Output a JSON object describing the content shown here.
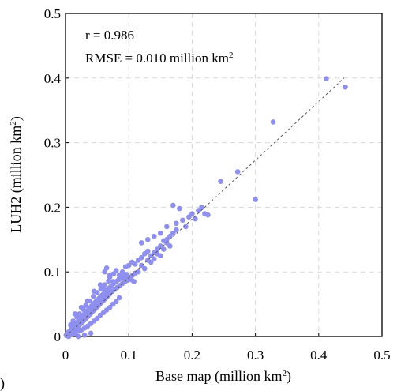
{
  "chart_data": {
    "type": "scatter",
    "xlabel": "Base map (million km",
    "xlabel_sup": "2",
    "xlabel_close": ")",
    "ylabel": "LUH2 (million km",
    "ylabel_sup": "2",
    "ylabel_close": ")",
    "xlim": [
      0,
      0.5
    ],
    "ylim": [
      0,
      0.5
    ],
    "x_ticks": [
      0,
      0.1,
      0.2,
      0.3,
      0.4,
      0.5
    ],
    "y_ticks": [
      0,
      0.1,
      0.2,
      0.3,
      0.4,
      0.5
    ],
    "x_tick_labels": [
      "0",
      "0.1",
      "0.2",
      "0.3",
      "0.4",
      "0.5"
    ],
    "y_tick_labels": [
      "0",
      "0.1",
      "0.2",
      "0.3",
      "0.4",
      "0.5"
    ],
    "grid": true,
    "point_color": "#8f8ff0",
    "reference_line": {
      "style": "dashed",
      "color": "#555555",
      "from": [
        0,
        0
      ],
      "to": [
        0.44,
        0.4
      ]
    },
    "annotations": {
      "r": "r = 0.986",
      "rmse": "RMSE = 0.010 million km",
      "rmse_sup": "2"
    },
    "panel_letter": ")",
    "points": [
      [
        0.001,
        0.002
      ],
      [
        0.002,
        0.001
      ],
      [
        0.003,
        0.005
      ],
      [
        0.004,
        0.003
      ],
      [
        0.005,
        0.007
      ],
      [
        0.006,
        0.004
      ],
      [
        0.007,
        0.009
      ],
      [
        0.008,
        0.006
      ],
      [
        0.009,
        0.011
      ],
      [
        0.01,
        0.008
      ],
      [
        0.011,
        0.013
      ],
      [
        0.012,
        0.01
      ],
      [
        0.013,
        0.015
      ],
      [
        0.014,
        0.012
      ],
      [
        0.015,
        0.018
      ],
      [
        0.016,
        0.011
      ],
      [
        0.017,
        0.02
      ],
      [
        0.018,
        0.014
      ],
      [
        0.019,
        0.022
      ],
      [
        0.02,
        0.016
      ],
      [
        0.021,
        0.025
      ],
      [
        0.022,
        0.018
      ],
      [
        0.023,
        0.027
      ],
      [
        0.024,
        0.02
      ],
      [
        0.025,
        0.03
      ],
      [
        0.026,
        0.022
      ],
      [
        0.027,
        0.032
      ],
      [
        0.028,
        0.024
      ],
      [
        0.029,
        0.034
      ],
      [
        0.03,
        0.026
      ],
      [
        0.031,
        0.036
      ],
      [
        0.032,
        0.028
      ],
      [
        0.033,
        0.038
      ],
      [
        0.034,
        0.03
      ],
      [
        0.035,
        0.04
      ],
      [
        0.036,
        0.032
      ],
      [
        0.037,
        0.042
      ],
      [
        0.038,
        0.034
      ],
      [
        0.039,
        0.045
      ],
      [
        0.04,
        0.036
      ],
      [
        0.041,
        0.047
      ],
      [
        0.042,
        0.038
      ],
      [
        0.043,
        0.049
      ],
      [
        0.044,
        0.04
      ],
      [
        0.045,
        0.051
      ],
      [
        0.046,
        0.042
      ],
      [
        0.047,
        0.053
      ],
      [
        0.048,
        0.044
      ],
      [
        0.049,
        0.055
      ],
      [
        0.05,
        0.046
      ],
      [
        0.051,
        0.057
      ],
      [
        0.052,
        0.048
      ],
      [
        0.053,
        0.059
      ],
      [
        0.054,
        0.05
      ],
      [
        0.055,
        0.061
      ],
      [
        0.056,
        0.052
      ],
      [
        0.057,
        0.063
      ],
      [
        0.058,
        0.054
      ],
      [
        0.059,
        0.065
      ],
      [
        0.06,
        0.056
      ],
      [
        0.061,
        0.067
      ],
      [
        0.062,
        0.058
      ],
      [
        0.063,
        0.069
      ],
      [
        0.064,
        0.06
      ],
      [
        0.065,
        0.071
      ],
      [
        0.066,
        0.062
      ],
      [
        0.067,
        0.073
      ],
      [
        0.068,
        0.064
      ],
      [
        0.069,
        0.075
      ],
      [
        0.07,
        0.066
      ],
      [
        0.072,
        0.078
      ],
      [
        0.074,
        0.07
      ],
      [
        0.076,
        0.082
      ],
      [
        0.078,
        0.073
      ],
      [
        0.08,
        0.085
      ],
      [
        0.082,
        0.076
      ],
      [
        0.084,
        0.088
      ],
      [
        0.086,
        0.079
      ],
      [
        0.088,
        0.09
      ],
      [
        0.09,
        0.082
      ],
      [
        0.092,
        0.093
      ],
      [
        0.094,
        0.085
      ],
      [
        0.096,
        0.096
      ],
      [
        0.098,
        0.087
      ],
      [
        0.1,
        0.09
      ],
      [
        0.102,
        0.092
      ],
      [
        0.104,
        0.088
      ],
      [
        0.106,
        0.095
      ],
      [
        0.108,
        0.085
      ],
      [
        0.11,
        0.098
      ],
      [
        0.005,
        0.0
      ],
      [
        0.01,
        0.003
      ],
      [
        0.015,
        0.004
      ],
      [
        0.02,
        0.008
      ],
      [
        0.025,
        0.01
      ],
      [
        0.03,
        0.013
      ],
      [
        0.035,
        0.016
      ],
      [
        0.04,
        0.02
      ],
      [
        0.045,
        0.024
      ],
      [
        0.05,
        0.028
      ],
      [
        0.055,
        0.033
      ],
      [
        0.06,
        0.037
      ],
      [
        0.065,
        0.041
      ],
      [
        0.07,
        0.045
      ],
      [
        0.075,
        0.05
      ],
      [
        0.08,
        0.054
      ],
      [
        0.085,
        0.06
      ],
      [
        0.04,
        0.005
      ],
      [
        0.03,
        0.002
      ],
      [
        0.02,
        0.0
      ],
      [
        0.008,
        0.018
      ],
      [
        0.012,
        0.024
      ],
      [
        0.018,
        0.03
      ],
      [
        0.022,
        0.035
      ],
      [
        0.028,
        0.042
      ],
      [
        0.032,
        0.048
      ],
      [
        0.038,
        0.055
      ],
      [
        0.044,
        0.062
      ],
      [
        0.05,
        0.068
      ],
      [
        0.056,
        0.074
      ],
      [
        0.062,
        0.08
      ],
      [
        0.068,
        0.086
      ],
      [
        0.062,
        0.1
      ],
      [
        0.065,
        0.106
      ],
      [
        0.07,
        0.092
      ],
      [
        0.076,
        0.097
      ],
      [
        0.08,
        0.102
      ],
      [
        0.085,
        0.095
      ],
      [
        0.09,
        0.1
      ],
      [
        0.095,
        0.108
      ],
      [
        0.1,
        0.11
      ],
      [
        0.105,
        0.115
      ],
      [
        0.11,
        0.112
      ],
      [
        0.115,
        0.118
      ],
      [
        0.12,
        0.122
      ],
      [
        0.125,
        0.128
      ],
      [
        0.13,
        0.132
      ],
      [
        0.115,
        0.1
      ],
      [
        0.12,
        0.11
      ],
      [
        0.125,
        0.105
      ],
      [
        0.13,
        0.118
      ],
      [
        0.135,
        0.125
      ],
      [
        0.14,
        0.13
      ],
      [
        0.145,
        0.135
      ],
      [
        0.15,
        0.14
      ],
      [
        0.155,
        0.148
      ],
      [
        0.16,
        0.15
      ],
      [
        0.165,
        0.155
      ],
      [
        0.17,
        0.16
      ],
      [
        0.175,
        0.165
      ],
      [
        0.14,
        0.12
      ],
      [
        0.145,
        0.128
      ],
      [
        0.15,
        0.125
      ],
      [
        0.155,
        0.135
      ],
      [
        0.16,
        0.145
      ],
      [
        0.165,
        0.14
      ],
      [
        0.15,
        0.16
      ],
      [
        0.16,
        0.17
      ],
      [
        0.17,
        0.203
      ],
      [
        0.175,
        0.175
      ],
      [
        0.18,
        0.198
      ],
      [
        0.185,
        0.18
      ],
      [
        0.19,
        0.17
      ],
      [
        0.195,
        0.185
      ],
      [
        0.2,
        0.19
      ],
      [
        0.205,
        0.182
      ],
      [
        0.21,
        0.195
      ],
      [
        0.215,
        0.2
      ],
      [
        0.22,
        0.19
      ],
      [
        0.225,
        0.188
      ],
      [
        0.245,
        0.24
      ],
      [
        0.272,
        0.255
      ],
      [
        0.3,
        0.212
      ],
      [
        0.328,
        0.332
      ],
      [
        0.412,
        0.399
      ],
      [
        0.442,
        0.386
      ],
      [
        0.12,
        0.145
      ],
      [
        0.13,
        0.15
      ],
      [
        0.14,
        0.155
      ],
      [
        0.135,
        0.115
      ],
      [
        0.045,
        0.07
      ],
      [
        0.055,
        0.08
      ],
      [
        0.06,
        0.075
      ],
      [
        0.07,
        0.095
      ],
      [
        0.075,
        0.085
      ],
      [
        0.085,
        0.09
      ],
      [
        0.095,
        0.09
      ],
      [
        0.035,
        0.055
      ],
      [
        0.025,
        0.045
      ],
      [
        0.015,
        0.035
      ]
    ]
  }
}
